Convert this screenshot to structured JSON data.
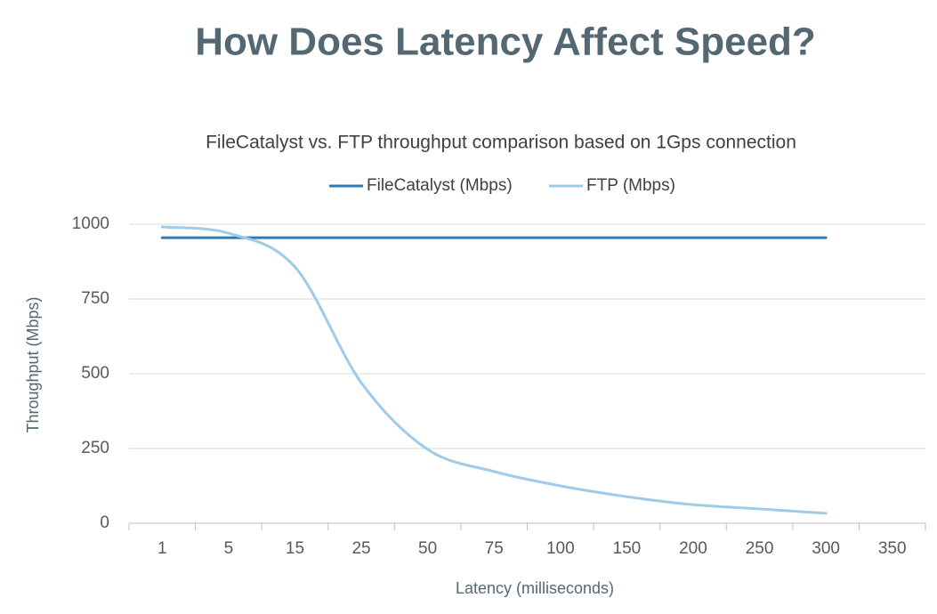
{
  "chart_data": {
    "type": "line",
    "title": "How Does Latency Affect Speed?",
    "subtitle": "FileCatalyst vs. FTP throughput comparison based on 1Gps connection",
    "x_label": "Latency (milliseconds)",
    "y_label": "Throughput (Mbps)",
    "categories": [
      1,
      5,
      15,
      25,
      50,
      75,
      100,
      150,
      200,
      250,
      300,
      350
    ],
    "series": [
      {
        "name": "FileCatalyst (Mbps)",
        "color": "#2e7bb4",
        "values": [
          955,
          955,
          955,
          955,
          955,
          955,
          955,
          955,
          955,
          955,
          955,
          null
        ]
      },
      {
        "name": "FTP (Mbps)",
        "color": "#9fcbe8",
        "values": [
          991,
          970,
          857,
          470,
          247,
          173,
          125,
          89,
          62,
          48,
          33,
          null
        ]
      }
    ],
    "ylim": [
      0,
      1000
    ],
    "yticks": [
      0,
      250,
      500,
      750,
      1000
    ],
    "grid": true,
    "legend": "top"
  }
}
